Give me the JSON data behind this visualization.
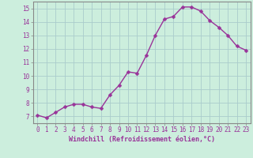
{
  "x": [
    0,
    1,
    2,
    3,
    4,
    5,
    6,
    7,
    8,
    9,
    10,
    11,
    12,
    13,
    14,
    15,
    16,
    17,
    18,
    19,
    20,
    21,
    22,
    23
  ],
  "y": [
    7.1,
    6.9,
    7.3,
    7.7,
    7.9,
    7.9,
    7.7,
    7.6,
    8.6,
    9.3,
    10.3,
    10.2,
    11.5,
    13.0,
    14.2,
    14.4,
    15.1,
    15.1,
    14.8,
    14.1,
    13.6,
    13.0,
    12.2,
    11.9
  ],
  "line_color": "#993399",
  "marker": "D",
  "marker_size": 2.5,
  "line_width": 1.0,
  "xlabel": "Windchill (Refroidissement éolien,°C)",
  "xlabel_fontsize": 6.0,
  "tick_fontsize": 5.5,
  "ylim": [
    6.5,
    15.5
  ],
  "xlim": [
    -0.5,
    23.5
  ],
  "yticks": [
    7,
    8,
    9,
    10,
    11,
    12,
    13,
    14,
    15
  ],
  "xticks": [
    0,
    1,
    2,
    3,
    4,
    5,
    6,
    7,
    8,
    9,
    10,
    11,
    12,
    13,
    14,
    15,
    16,
    17,
    18,
    19,
    20,
    21,
    22,
    23
  ],
  "background_color": "#cceedd",
  "grid_color": "#aacccc",
  "spine_color": "#888888"
}
